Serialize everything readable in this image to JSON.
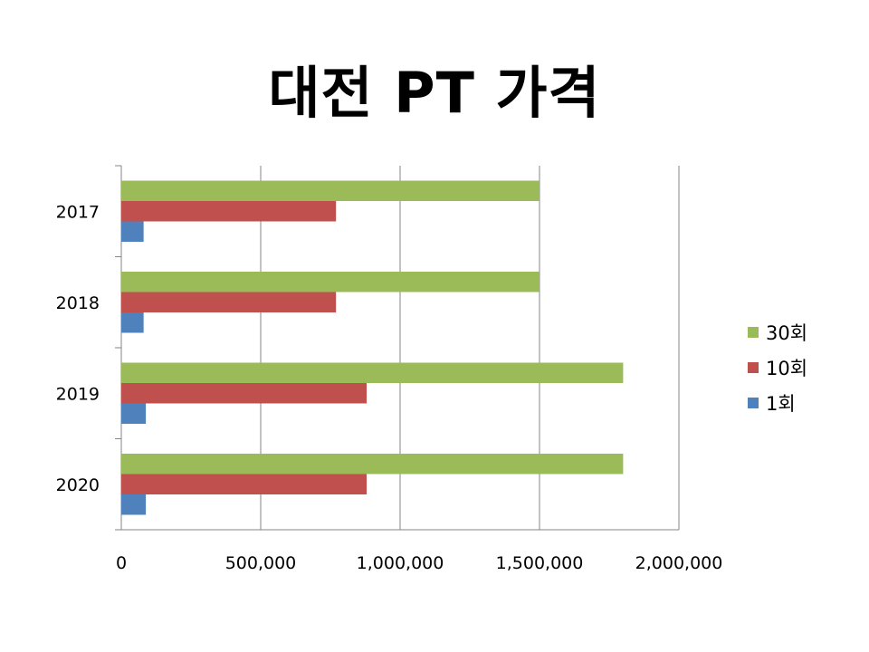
{
  "chart_data": {
    "type": "bar",
    "orientation": "horizontal",
    "title": "대전 PT 가격",
    "categories": [
      "2017",
      "2018",
      "2019",
      "2020"
    ],
    "series": [
      {
        "name": "1회",
        "color": "#4F81BD",
        "values": [
          80000,
          80000,
          88000,
          88000
        ]
      },
      {
        "name": "10회",
        "color": "#C0504D",
        "values": [
          770000,
          770000,
          880000,
          880000
        ]
      },
      {
        "name": "30회",
        "color": "#9BBB59",
        "values": [
          1500000,
          1500000,
          1800000,
          1800000
        ]
      }
    ],
    "xlim": [
      0,
      2000000
    ],
    "x_ticks": [
      "0",
      "500,000",
      "1,000,000",
      "1,500,000",
      "2,000,000"
    ],
    "grid": "vertical",
    "legend": "right",
    "legend_order": [
      "30회",
      "10회",
      "1회"
    ]
  }
}
